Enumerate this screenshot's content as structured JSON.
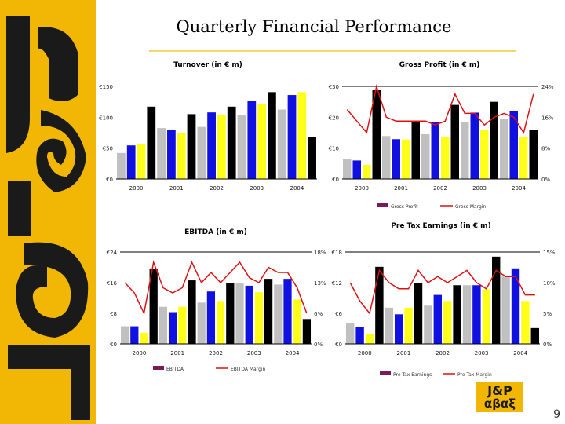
{
  "page": {
    "title": "Quarterly Financial Performance",
    "page_number": "9",
    "logo_line1": "J&P",
    "logo_line2": "αβαξ",
    "brand_text": "J&P αβαξ",
    "colors": {
      "brand_yellow": "#f2b705",
      "black": "#000000",
      "blue": "#1010e0",
      "gray": "#c0c0c0",
      "yellow": "#ffff1a",
      "margin_red": "#dd1111",
      "legend_purple": "#7a1a5a"
    }
  },
  "chart_data": [
    {
      "type": "bar",
      "title": "Turnover (in € m)",
      "x_labels": [
        "2000",
        "2001",
        "2002",
        "2003",
        "2004"
      ],
      "colors": [
        "#c0c0c0",
        "#1010e0",
        "#ffff1a",
        "#000000"
      ],
      "values": [
        45,
        58,
        60,
        125,
        88,
        85,
        80,
        112,
        90,
        115,
        110,
        125,
        110,
        135,
        130,
        150,
        120,
        145,
        150,
        72
      ],
      "y_ticks": [
        "€0",
        "€50",
        "€100",
        "€150"
      ],
      "ylim": [
        0,
        160
      ],
      "legend": []
    },
    {
      "type": "bar",
      "title": "Gross Profit (in € m)",
      "x_labels": [
        "2000",
        "2001",
        "2002",
        "2003",
        "2004"
      ],
      "colors": [
        "#c0c0c0",
        "#1010e0",
        "#ffff1a",
        "#000000"
      ],
      "values": [
        6.6,
        6,
        4.6,
        28.9,
        13.9,
        12.9,
        12.8,
        18.5,
        14.5,
        18.5,
        13.5,
        24,
        18.5,
        21.5,
        16,
        25,
        19.5,
        22,
        13.5,
        16
      ],
      "y_ticks": [
        "€0",
        "€10",
        "€20",
        "€30"
      ],
      "ylim": [
        0,
        30
      ],
      "margin_line": [
        18,
        15,
        12,
        24,
        16,
        15,
        15,
        15,
        15,
        14,
        15,
        22,
        17,
        17,
        14,
        16,
        17,
        16,
        12,
        22
      ],
      "y2_ticks": [
        "0%",
        "8%",
        "16%",
        "24%"
      ],
      "y2lim": [
        0,
        24
      ],
      "legend": [
        "Gross Profit",
        "Gross Margin"
      ]
    },
    {
      "type": "bar",
      "title": "EBITDA  (in € m)",
      "x_labels": [
        "2000",
        "2001",
        "2002",
        "2003",
        "2004"
      ],
      "colors": [
        "#c0c0c0",
        "#1010e0",
        "#ffff1a",
        "#000000"
      ],
      "values": [
        4.6,
        4.6,
        2.9,
        19.7,
        9.7,
        8.3,
        9.7,
        16.6,
        10.8,
        13.7,
        11.2,
        15.8,
        15.8,
        15.2,
        13.5,
        17,
        15.5,
        17,
        11.6,
        6.5
      ],
      "y_ticks": [
        "€0",
        "€8",
        "€16",
        "€24"
      ],
      "ylim": [
        0,
        24
      ],
      "margin_line": [
        12,
        10,
        6,
        16,
        11,
        10,
        11,
        16,
        12,
        14,
        12,
        14,
        16,
        13,
        12,
        15,
        14,
        14,
        11,
        6
      ],
      "y2_ticks": [
        "0%",
        "6%",
        "13%",
        "18%"
      ],
      "y2lim": [
        0,
        18
      ],
      "legend": [
        "EBITDA",
        "EBITDA Margin"
      ]
    },
    {
      "type": "bar",
      "title": "Pre Tax Earnings (in € m)",
      "x_labels": [
        "2000",
        "2001",
        "2002",
        "2003",
        "2004"
      ],
      "colors": [
        "#c0c0c0",
        "#1010e0",
        "#ffff1a",
        "#000000"
      ],
      "values": [
        4.1,
        3.3,
        1.9,
        15.1,
        7.1,
        5.8,
        7.1,
        12,
        7.5,
        9.6,
        8.4,
        11.5,
        11.5,
        11.5,
        10.7,
        17.1,
        13.2,
        14.8,
        8.4,
        3.1
      ],
      "y_ticks": [
        "€0",
        "€6",
        "€12",
        "€18"
      ],
      "ylim": [
        0,
        18
      ],
      "margin_line": [
        10,
        7,
        5,
        12,
        10,
        9,
        9,
        12,
        10,
        11,
        10,
        11,
        12,
        10,
        9,
        12,
        11,
        11,
        8,
        8
      ],
      "y2_ticks": [
        "0%",
        "5%",
        "10%",
        "15%"
      ],
      "y2lim": [
        0,
        15
      ],
      "legend": [
        "Pre Tax Earnings",
        "Pre Tax Margin"
      ]
    }
  ]
}
